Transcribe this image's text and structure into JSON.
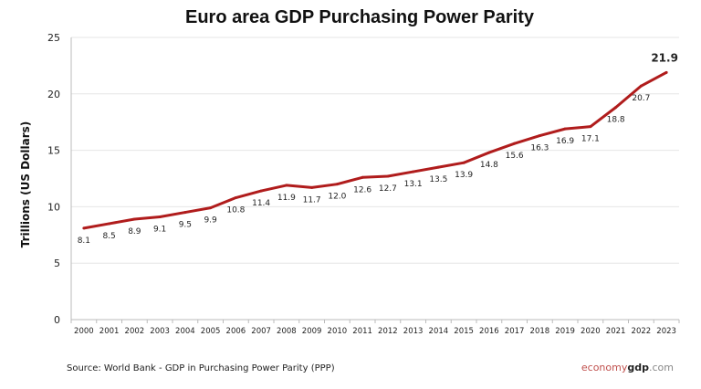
{
  "chart_data": {
    "type": "line",
    "title": "Euro area GDP Purchasing Power Parity",
    "xlabel": "",
    "ylabel": "Trillions (US Dollars)",
    "ylim": [
      0,
      25
    ],
    "yticks": [
      0,
      5,
      10,
      15,
      20,
      25
    ],
    "grid": true,
    "categories": [
      "2000",
      "2001",
      "2002",
      "2003",
      "2004",
      "2005",
      "2006",
      "2007",
      "2008",
      "2009",
      "2010",
      "2011",
      "2012",
      "2013",
      "2014",
      "2015",
      "2016",
      "2017",
      "2018",
      "2019",
      "2020",
      "2021",
      "2022",
      "2023"
    ],
    "values": [
      8.1,
      8.5,
      8.9,
      9.1,
      9.5,
      9.9,
      10.8,
      11.4,
      11.9,
      11.7,
      12.0,
      12.6,
      12.7,
      13.1,
      13.5,
      13.9,
      14.8,
      15.6,
      16.3,
      16.9,
      17.1,
      18.8,
      20.7,
      21.9
    ],
    "data_labels": [
      "8.1",
      "8.5",
      "8.9",
      "9.1",
      "9.5",
      "9.9",
      "10.8",
      "11.4",
      "11.9",
      "11.7",
      "12.0",
      "12.6",
      "12.7",
      "13.1",
      "13.5",
      "13.9",
      "14.8",
      "15.6",
      "16.3",
      "16.9",
      "17.1",
      "18.8",
      "20.7",
      "21.9"
    ],
    "line_color": "#b01c1c"
  },
  "source": "Source:  World Bank -  GDP  in Purchasing Power Parity (PPP)",
  "brand": {
    "part1": "economy",
    "part2": "gdp",
    "part3": ".com"
  }
}
